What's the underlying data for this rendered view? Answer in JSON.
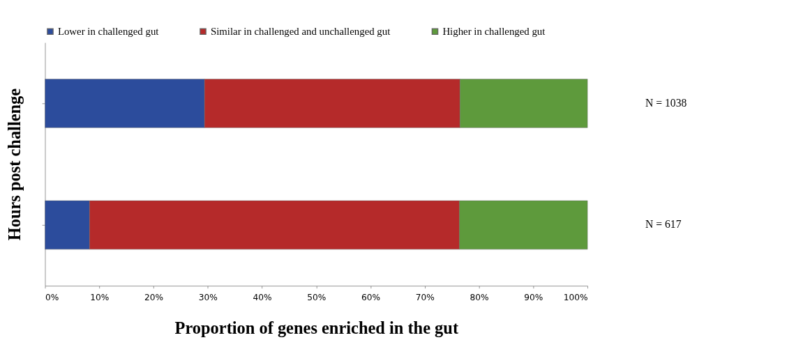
{
  "chart_data": {
    "type": "bar",
    "orientation": "horizontal",
    "stacked": true,
    "relative": false,
    "ylabel": "Hours post challenge",
    "xlabel": "Proportion of genes enriched in the gut",
    "categories": [
      null,
      null
    ],
    "series": [
      {
        "name": "Lower in challenged  gut",
        "color": "#2c4c9c",
        "values": [
          29.4,
          8.2
        ]
      },
      {
        "name": "Similar in challenged  and unchallenged gut",
        "color": "#b52a2a",
        "values": [
          47.1,
          68.2
        ]
      },
      {
        "name": "Higher in  challenged gut",
        "color": "#5e9a3c",
        "values": [
          23.5,
          23.6
        ]
      }
    ],
    "xlim": [
      0,
      100
    ],
    "xticks": [
      {
        "value": 0,
        "label": "0%"
      },
      {
        "value": 10,
        "label": "10%"
      },
      {
        "value": 20,
        "label": "20%"
      },
      {
        "value": 30,
        "label": "30%"
      },
      {
        "value": 40,
        "label": "40%"
      },
      {
        "value": 50,
        "label": "50%"
      },
      {
        "value": 60,
        "label": "60%"
      },
      {
        "value": 70,
        "label": "70%"
      },
      {
        "value": 80,
        "label": "80%"
      },
      {
        "value": 90,
        "label": "90%"
      },
      {
        "value": 100,
        "label": "100%"
      }
    ],
    "annotations": [
      "N = 1038",
      "N = 617"
    ],
    "legend": "top",
    "grid": false,
    "tick_labels": "x"
  }
}
